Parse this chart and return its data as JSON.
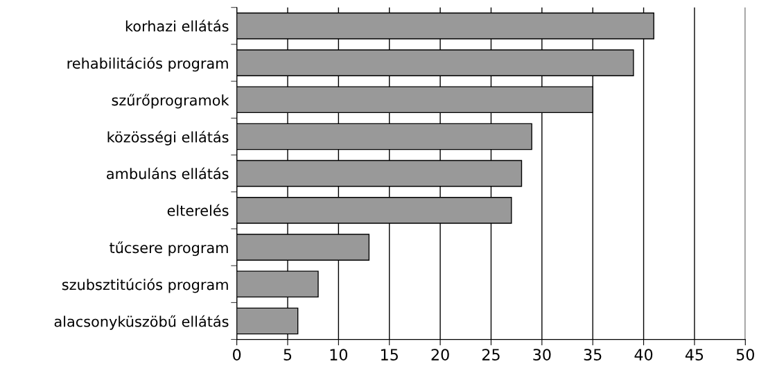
{
  "chart_data": {
    "type": "bar",
    "orientation": "horizontal",
    "categories": [
      "korhazi ellátás",
      "rehabilitációs program",
      "szűrőprogramok",
      "közösségi ellátás",
      "ambuláns ellátás",
      "elterelés",
      "tűcsere program",
      "szubsztitúciós program",
      "alacsonyküszöbű ellátás"
    ],
    "values": [
      41,
      39,
      35,
      29,
      28,
      27,
      13,
      8,
      6
    ],
    "color": "#999999",
    "xlim": [
      0,
      50
    ],
    "xticks": [
      0,
      5,
      10,
      15,
      20,
      25,
      30,
      35,
      40,
      45,
      50
    ],
    "grid": "x",
    "legend": false
  }
}
